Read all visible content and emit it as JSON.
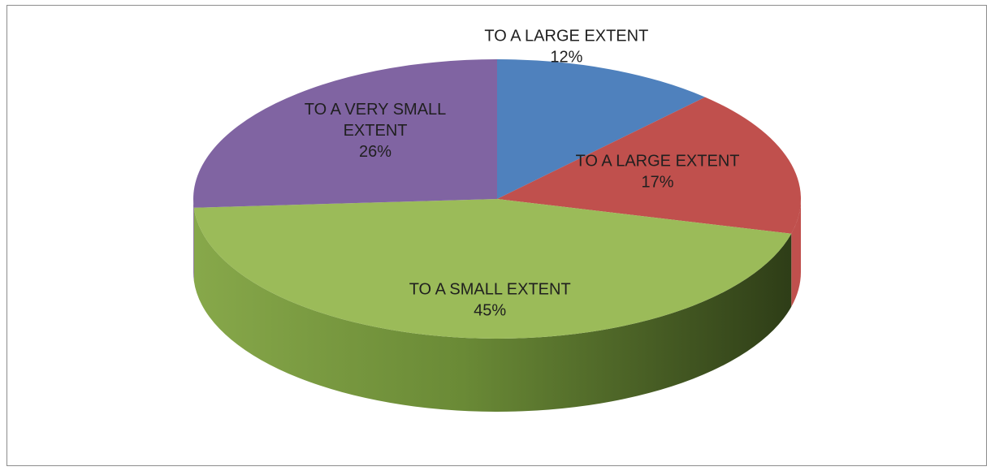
{
  "chart_data": {
    "type": "pie",
    "style": "3d",
    "title": "",
    "slices": [
      {
        "label_lines": [
          "TO A LARGE EXTENT"
        ],
        "value": 12,
        "percent_label": "12%",
        "color": "#4F81BD",
        "label_position": "outside"
      },
      {
        "label_lines": [
          "TO A LARGE EXTENT"
        ],
        "value": 17,
        "percent_label": "17%",
        "color": "#C0504D",
        "label_position": "inside"
      },
      {
        "label_lines": [
          "TO A SMALL EXTENT"
        ],
        "value": 45,
        "percent_label": "45%",
        "color": "#9BBB59",
        "label_position": "inside"
      },
      {
        "label_lines": [
          "TO A VERY SMALL",
          "EXTENT"
        ],
        "value": 26,
        "percent_label": "26%",
        "color": "#8064A2",
        "label_position": "inside"
      }
    ],
    "legend": "none"
  }
}
